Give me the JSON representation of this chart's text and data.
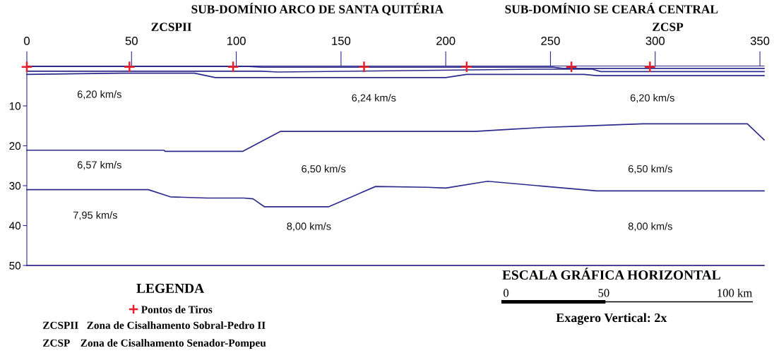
{
  "chart_data": {
    "type": "line",
    "xlim": [
      0,
      352
    ],
    "xticks": [
      0,
      50,
      100,
      150,
      200,
      250,
      300,
      350
    ],
    "ylim": [
      50,
      0
    ],
    "yticks": [
      10,
      20,
      30,
      40,
      50
    ],
    "grid": false,
    "legend": "bottom left",
    "legend_title": "LEGENDA",
    "series": [
      {
        "color": "#2e2a8c",
        "x": [
          0,
          106,
          112,
          251,
          256,
          352
        ],
        "values": [
          0.1,
          0.1,
          0.3,
          0.3,
          0.6,
          0.6
        ]
      },
      {
        "color": "#2e2a8c",
        "x": [
          0,
          112,
          120,
          243,
          270,
          274,
          352
        ],
        "values": [
          1.3,
          1.3,
          1.5,
          0.8,
          0.8,
          1.4,
          1.4
        ]
      },
      {
        "color": "#2e2a8c",
        "x": [
          0,
          45,
          80,
          90,
          200,
          210,
          266,
          272,
          352
        ],
        "values": [
          2.1,
          1.8,
          1.8,
          2.9,
          2.9,
          2.1,
          2.1,
          2.4,
          2.4
        ]
      },
      {
        "color": "#2e2a8c",
        "x": [
          0,
          65.5,
          66,
          103,
          121,
          214,
          229.5,
          246,
          262.5,
          278,
          294,
          344,
          352
        ],
        "values": [
          21.1,
          21.1,
          21.4,
          21.4,
          16.4,
          16.4,
          15.9,
          15.4,
          15.1,
          14.8,
          14.5,
          14.5,
          18.5
        ]
      },
      {
        "color": "#2e2a8c",
        "x": [
          0,
          58,
          68.5,
          86,
          103.5,
          108,
          113.5,
          144,
          166.5,
          191,
          200,
          220,
          272,
          352
        ],
        "values": [
          31.0,
          31.0,
          32.8,
          33.1,
          33.1,
          33.3,
          35.3,
          35.3,
          30.2,
          30.4,
          30.6,
          28.9,
          31.3,
          31.3
        ]
      },
      {
        "color": "#2e2a8c",
        "x": [
          0,
          352
        ],
        "values": [
          50,
          50
        ]
      },
      {
        "type": "scatter",
        "name": "Pontos de Tiros",
        "color": "#e8202a",
        "marker": "cross",
        "x": [
          0,
          49,
          98.5,
          161,
          210,
          260,
          297.5
        ],
        "values": [
          0.2,
          0.2,
          0.2,
          0.2,
          0.2,
          0.2,
          0.2
        ]
      }
    ],
    "annotations": [
      "6,20 km/s",
      "6,24 km/s",
      "6,20 km/s",
      "6,57 km/s",
      "6,50 km/s",
      "6,50 km/s",
      "7,95 km/s",
      "8,00 km/s",
      "8,00 km/s",
      "ZCSPII",
      "ZCSP",
      "SUB-DOMÍNIO ARCO DE SANTA QUITÉRIA",
      "SUB-DOMÍNIO SE CEARÁ CENTRAL",
      "ZCSPII   Zona de Cisalhamento Sobral-Pedro II",
      "ZCSP    Zona de Cisalhamento Senador-Pompeu",
      "ESCALA GRÁFICA HORIZONTAL",
      "0",
      "50",
      "100 km",
      "Exagero Vertical: 2x"
    ]
  }
}
